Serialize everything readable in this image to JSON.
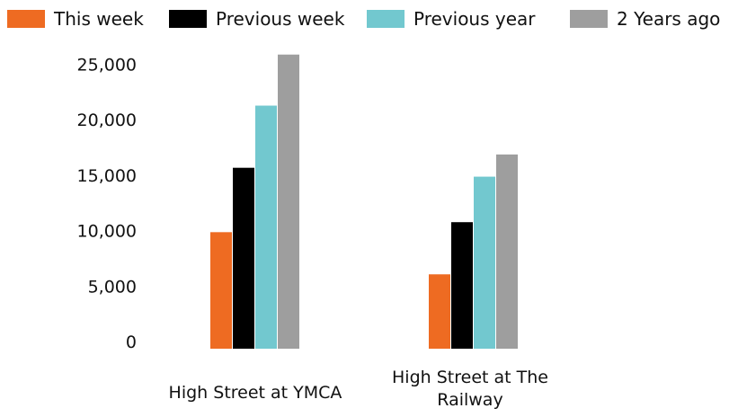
{
  "chart_data": {
    "type": "bar",
    "categories": [
      "High Street at YMCA",
      "High Street at The Railway"
    ],
    "category_lines": [
      [
        "High Street at YMCA"
      ],
      [
        "High Street at The",
        "Railway"
      ]
    ],
    "series": [
      {
        "name": "This week",
        "color": "#EE6B22",
        "values": [
          10500,
          6700
        ]
      },
      {
        "name": "Previous week",
        "color": "#000000",
        "values": [
          16300,
          11400
        ]
      },
      {
        "name": "Previous year",
        "color": "#72C8CF",
        "values": [
          21900,
          15500
        ]
      },
      {
        "name": "2 Years ago",
        "color": "#9E9E9E",
        "values": [
          26500,
          17500
        ]
      }
    ],
    "yticks": [
      "0",
      "5,000",
      "10,000",
      "15,000",
      "20,000",
      "25,000"
    ],
    "ytick_values": [
      0,
      5000,
      10000,
      15000,
      20000,
      25000
    ],
    "ylim": [
      0,
      27000
    ],
    "grid": false,
    "legend_position": "top"
  }
}
